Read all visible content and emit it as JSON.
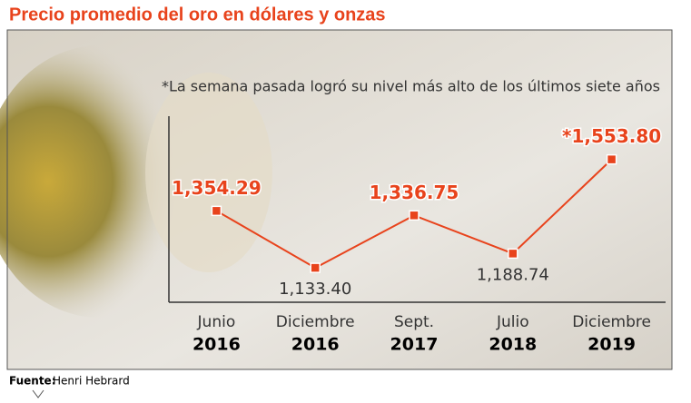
{
  "chart_data": {
    "type": "line",
    "title": "Precio promedio del oro en dólares y onzas",
    "annotation": "*La semana pasada logró su nivel más alto de los últimos siete años",
    "categories": [
      [
        "Junio",
        "2016"
      ],
      [
        "Diciembre",
        "2016"
      ],
      [
        "Sept.",
        "2017"
      ],
      [
        "Julio",
        "2018"
      ],
      [
        "Diciembre",
        "2019"
      ]
    ],
    "values": [
      1354.29,
      1133.4,
      1336.75,
      1188.74,
      1553.8
    ],
    "value_labels": [
      "1,354.29",
      "1,133.40",
      "1,336.75",
      "1,188.74",
      "*1,553.80"
    ],
    "highlight": [
      true,
      false,
      true,
      false,
      true
    ],
    "color": "#e8431c",
    "ylim": [
      1000,
      1820
    ],
    "source_label": "Fuente:",
    "source": "Henri Hebrard"
  }
}
